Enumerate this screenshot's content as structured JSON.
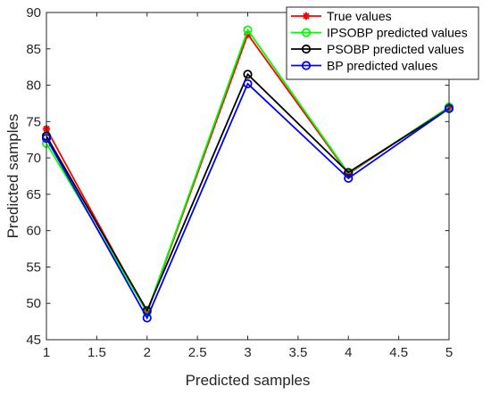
{
  "chart_data": {
    "type": "line",
    "title": "",
    "xlabel": "Predicted samples",
    "ylabel": "Predicted samples",
    "xlim": [
      1,
      5
    ],
    "ylim": [
      45,
      90
    ],
    "xticks": [
      1,
      1.5,
      2,
      2.5,
      3,
      3.5,
      4,
      4.5,
      5
    ],
    "xtick_labels": [
      "1",
      "1.5",
      "2",
      "2.5",
      "3",
      "3.5",
      "4",
      "4.5",
      "5"
    ],
    "yticks": [
      45,
      50,
      55,
      60,
      65,
      70,
      75,
      80,
      85,
      90
    ],
    "ytick_labels": [
      "45",
      "50",
      "55",
      "60",
      "65",
      "70",
      "75",
      "80",
      "85",
      "90"
    ],
    "grid": false,
    "legend_position": "top-right",
    "x": [
      1,
      2,
      3,
      4,
      5
    ],
    "series": [
      {
        "name": "True values",
        "values": [
          74.0,
          48.7,
          87.0,
          67.8,
          77.0
        ],
        "color": "#ff0000",
        "marker": "asterisk"
      },
      {
        "name": "IPSOBP predicted values",
        "values": [
          72.0,
          48.8,
          87.6,
          67.9,
          77.0
        ],
        "color": "#00ff00",
        "marker": "circle"
      },
      {
        "name": "PSOBP predicted values",
        "values": [
          73.0,
          49.0,
          81.5,
          68.0,
          76.8
        ],
        "color": "#000000",
        "marker": "circle"
      },
      {
        "name": "BP predicted values",
        "values": [
          72.7,
          48.0,
          80.2,
          67.2,
          76.8
        ],
        "color": "#0000ff",
        "marker": "circle"
      }
    ]
  }
}
